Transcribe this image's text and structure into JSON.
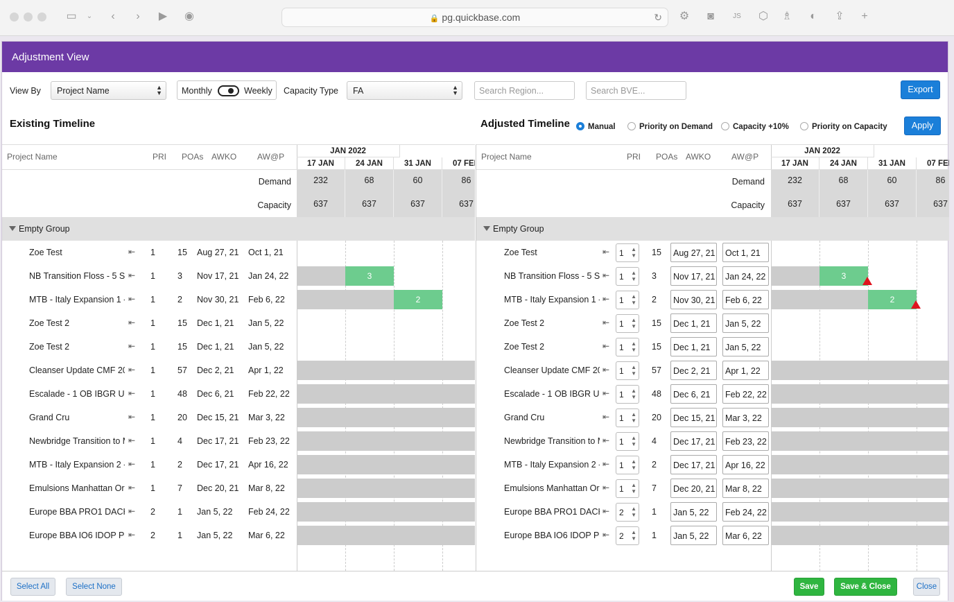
{
  "browser": {
    "url": "pg.quickbase.com"
  },
  "header": {
    "title": "Adjustment View"
  },
  "toolbar": {
    "view_by_label": "View By",
    "view_by_value": "Project Name",
    "toggle_left": "Monthly",
    "toggle_right": "Weekly",
    "capacity_type_label": "Capacity Type",
    "capacity_type_value": "FA",
    "search_region_placeholder": "Search Region...",
    "search_bve_placeholder": "Search BVE...",
    "export_label": "Export"
  },
  "existing": {
    "title": "Existing Timeline"
  },
  "adjusted": {
    "title": "Adjusted Timeline",
    "radios": [
      {
        "label": "Manual",
        "selected": true
      },
      {
        "label": "Priority on Demand",
        "selected": false
      },
      {
        "label": "Capacity +10%",
        "selected": false
      },
      {
        "label": "Priority on Capacity",
        "selected": false
      }
    ],
    "apply_label": "Apply"
  },
  "columns": {
    "project": "Project Name",
    "pri": "PRI",
    "poas": "POAs",
    "awko": "AWKO",
    "awp": "AW@P"
  },
  "timeline": {
    "month": "JAN 2022",
    "weeks": [
      "17 JAN",
      "24 JAN",
      "31 JAN",
      "07 FEB"
    ],
    "demand_label": "Demand",
    "capacity_label": "Capacity",
    "demand": [
      "232",
      "68",
      "60",
      "86"
    ],
    "capacity": [
      "637",
      "637",
      "637",
      "637"
    ]
  },
  "group": {
    "name": "Empty Group"
  },
  "rows": [
    {
      "name": "Zoe Test",
      "pri": "1",
      "poas": "15",
      "awko": "Aug 27, 21",
      "awp": "Oct 1, 21"
    },
    {
      "name": "NB Transition Floss - 5 Su",
      "pri": "1",
      "poas": "3",
      "awko": "Nov 17, 21",
      "awp": "Jan 24, 22",
      "green_label": "3"
    },
    {
      "name": "MTB - Italy Expansion 1 -",
      "pri": "1",
      "poas": "2",
      "awko": "Nov 30, 21",
      "awp": "Feb 6, 22",
      "green_label": "2"
    },
    {
      "name": "Zoe Test 2",
      "pri": "1",
      "poas": "15",
      "awko": "Dec 1, 21",
      "awp": "Jan 5, 22"
    },
    {
      "name": "Zoe Test 2",
      "pri": "1",
      "poas": "15",
      "awko": "Dec 1, 21",
      "awp": "Jan 5, 22"
    },
    {
      "name": "Cleanser Update CMF 20",
      "pri": "1",
      "poas": "57",
      "awko": "Dec 2, 21",
      "awp": "Apr 1, 22"
    },
    {
      "name": "Escalade - 1 OB IBGR UK",
      "pri": "1",
      "poas": "48",
      "awko": "Dec 6, 21",
      "awp": "Feb 22, 22"
    },
    {
      "name": "Grand Cru",
      "pri": "1",
      "poas": "20",
      "awko": "Dec 15, 21",
      "awp": "Mar 3, 22"
    },
    {
      "name": "Newbridge Transition to M",
      "pri": "1",
      "poas": "4",
      "awko": "Dec 17, 21",
      "awp": "Feb 23, 22"
    },
    {
      "name": "MTB - Italy Expansion 2 -",
      "pri": "1",
      "poas": "2",
      "awko": "Dec 17, 21",
      "awp": "Apr 16, 22"
    },
    {
      "name": "Emulsions Manhattan Ora",
      "pri": "1",
      "poas": "7",
      "awko": "Dec 20, 21",
      "awp": "Mar 8, 22"
    },
    {
      "name": "Europe BBA PRO1 DACH",
      "pri": "2",
      "poas": "1",
      "awko": "Jan 5, 22",
      "awp": "Feb 24, 22"
    },
    {
      "name": "Europe BBA IO6 IDOP Pc",
      "pri": "2",
      "poas": "1",
      "awko": "Jan 5, 22",
      "awp": "Mar 6, 22"
    }
  ],
  "footer": {
    "select_all": "Select All",
    "select_none": "Select None",
    "save": "Save",
    "save_close": "Save & Close",
    "close": "Close"
  }
}
